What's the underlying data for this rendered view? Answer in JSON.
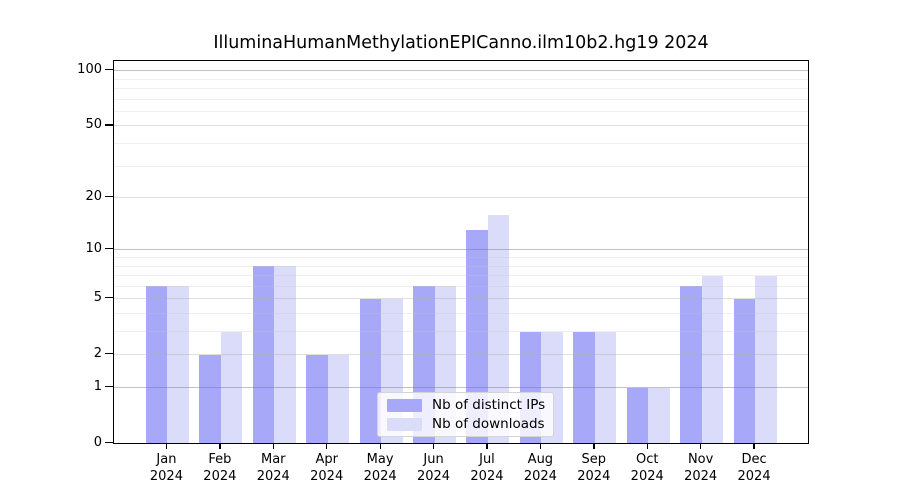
{
  "title": "IlluminaHumanMethylationEPICanno.ilm10b2.hg19 2024",
  "chart_data": {
    "type": "bar",
    "title": "IlluminaHumanMethylationEPICanno.ilm10b2.hg19 2024",
    "categories": [
      "Jan 2024",
      "Feb 2024",
      "Mar 2024",
      "Apr 2024",
      "May 2024",
      "Jun 2024",
      "Jul 2024",
      "Aug 2024",
      "Sep 2024",
      "Oct 2024",
      "Nov 2024",
      "Dec 2024"
    ],
    "x_tick_months": [
      "Jan",
      "Feb",
      "Mar",
      "Apr",
      "May",
      "Jun",
      "Jul",
      "Aug",
      "Sep",
      "Oct",
      "Nov",
      "Dec"
    ],
    "x_tick_year": "2024",
    "series": [
      {
        "name": "Nb of distinct IPs",
        "color": "#a8a8f8",
        "values": [
          6,
          2,
          8,
          2,
          5,
          6,
          13,
          3,
          3,
          1,
          6,
          5
        ]
      },
      {
        "name": "Nb of downloads",
        "color": "#dbdbfa",
        "values": [
          6,
          3,
          8,
          2,
          5,
          6,
          16,
          3,
          3,
          1,
          7,
          7
        ]
      }
    ],
    "yscale": "log10(value+1)",
    "y_tick_values": [
      0,
      1,
      2,
      5,
      10,
      20,
      50,
      100
    ],
    "ylim": [
      0,
      114
    ],
    "grid": {
      "major_values": [
        1,
        10,
        100
      ],
      "mid_values": [
        2,
        5,
        20,
        50
      ],
      "minor_values": [
        3,
        4,
        6,
        7,
        8,
        9,
        30,
        40,
        60,
        70,
        80,
        90
      ]
    },
    "legend_position": "lower-center-inside"
  },
  "colors": {
    "background": "#ffffff",
    "axis": "#000000",
    "text": "#000000",
    "bar_distinct_ips": "#a8a8f8",
    "bar_downloads": "#dbdbfa",
    "grid_major": "rgba(120,120,120,0.45)",
    "grid_mid": "rgba(175,175,175,0.40)",
    "grid_minor": "rgba(200,200,200,0.30)",
    "legend_border": "#d4d4d4",
    "legend_background": "rgba(255,255,255,0.8)"
  }
}
